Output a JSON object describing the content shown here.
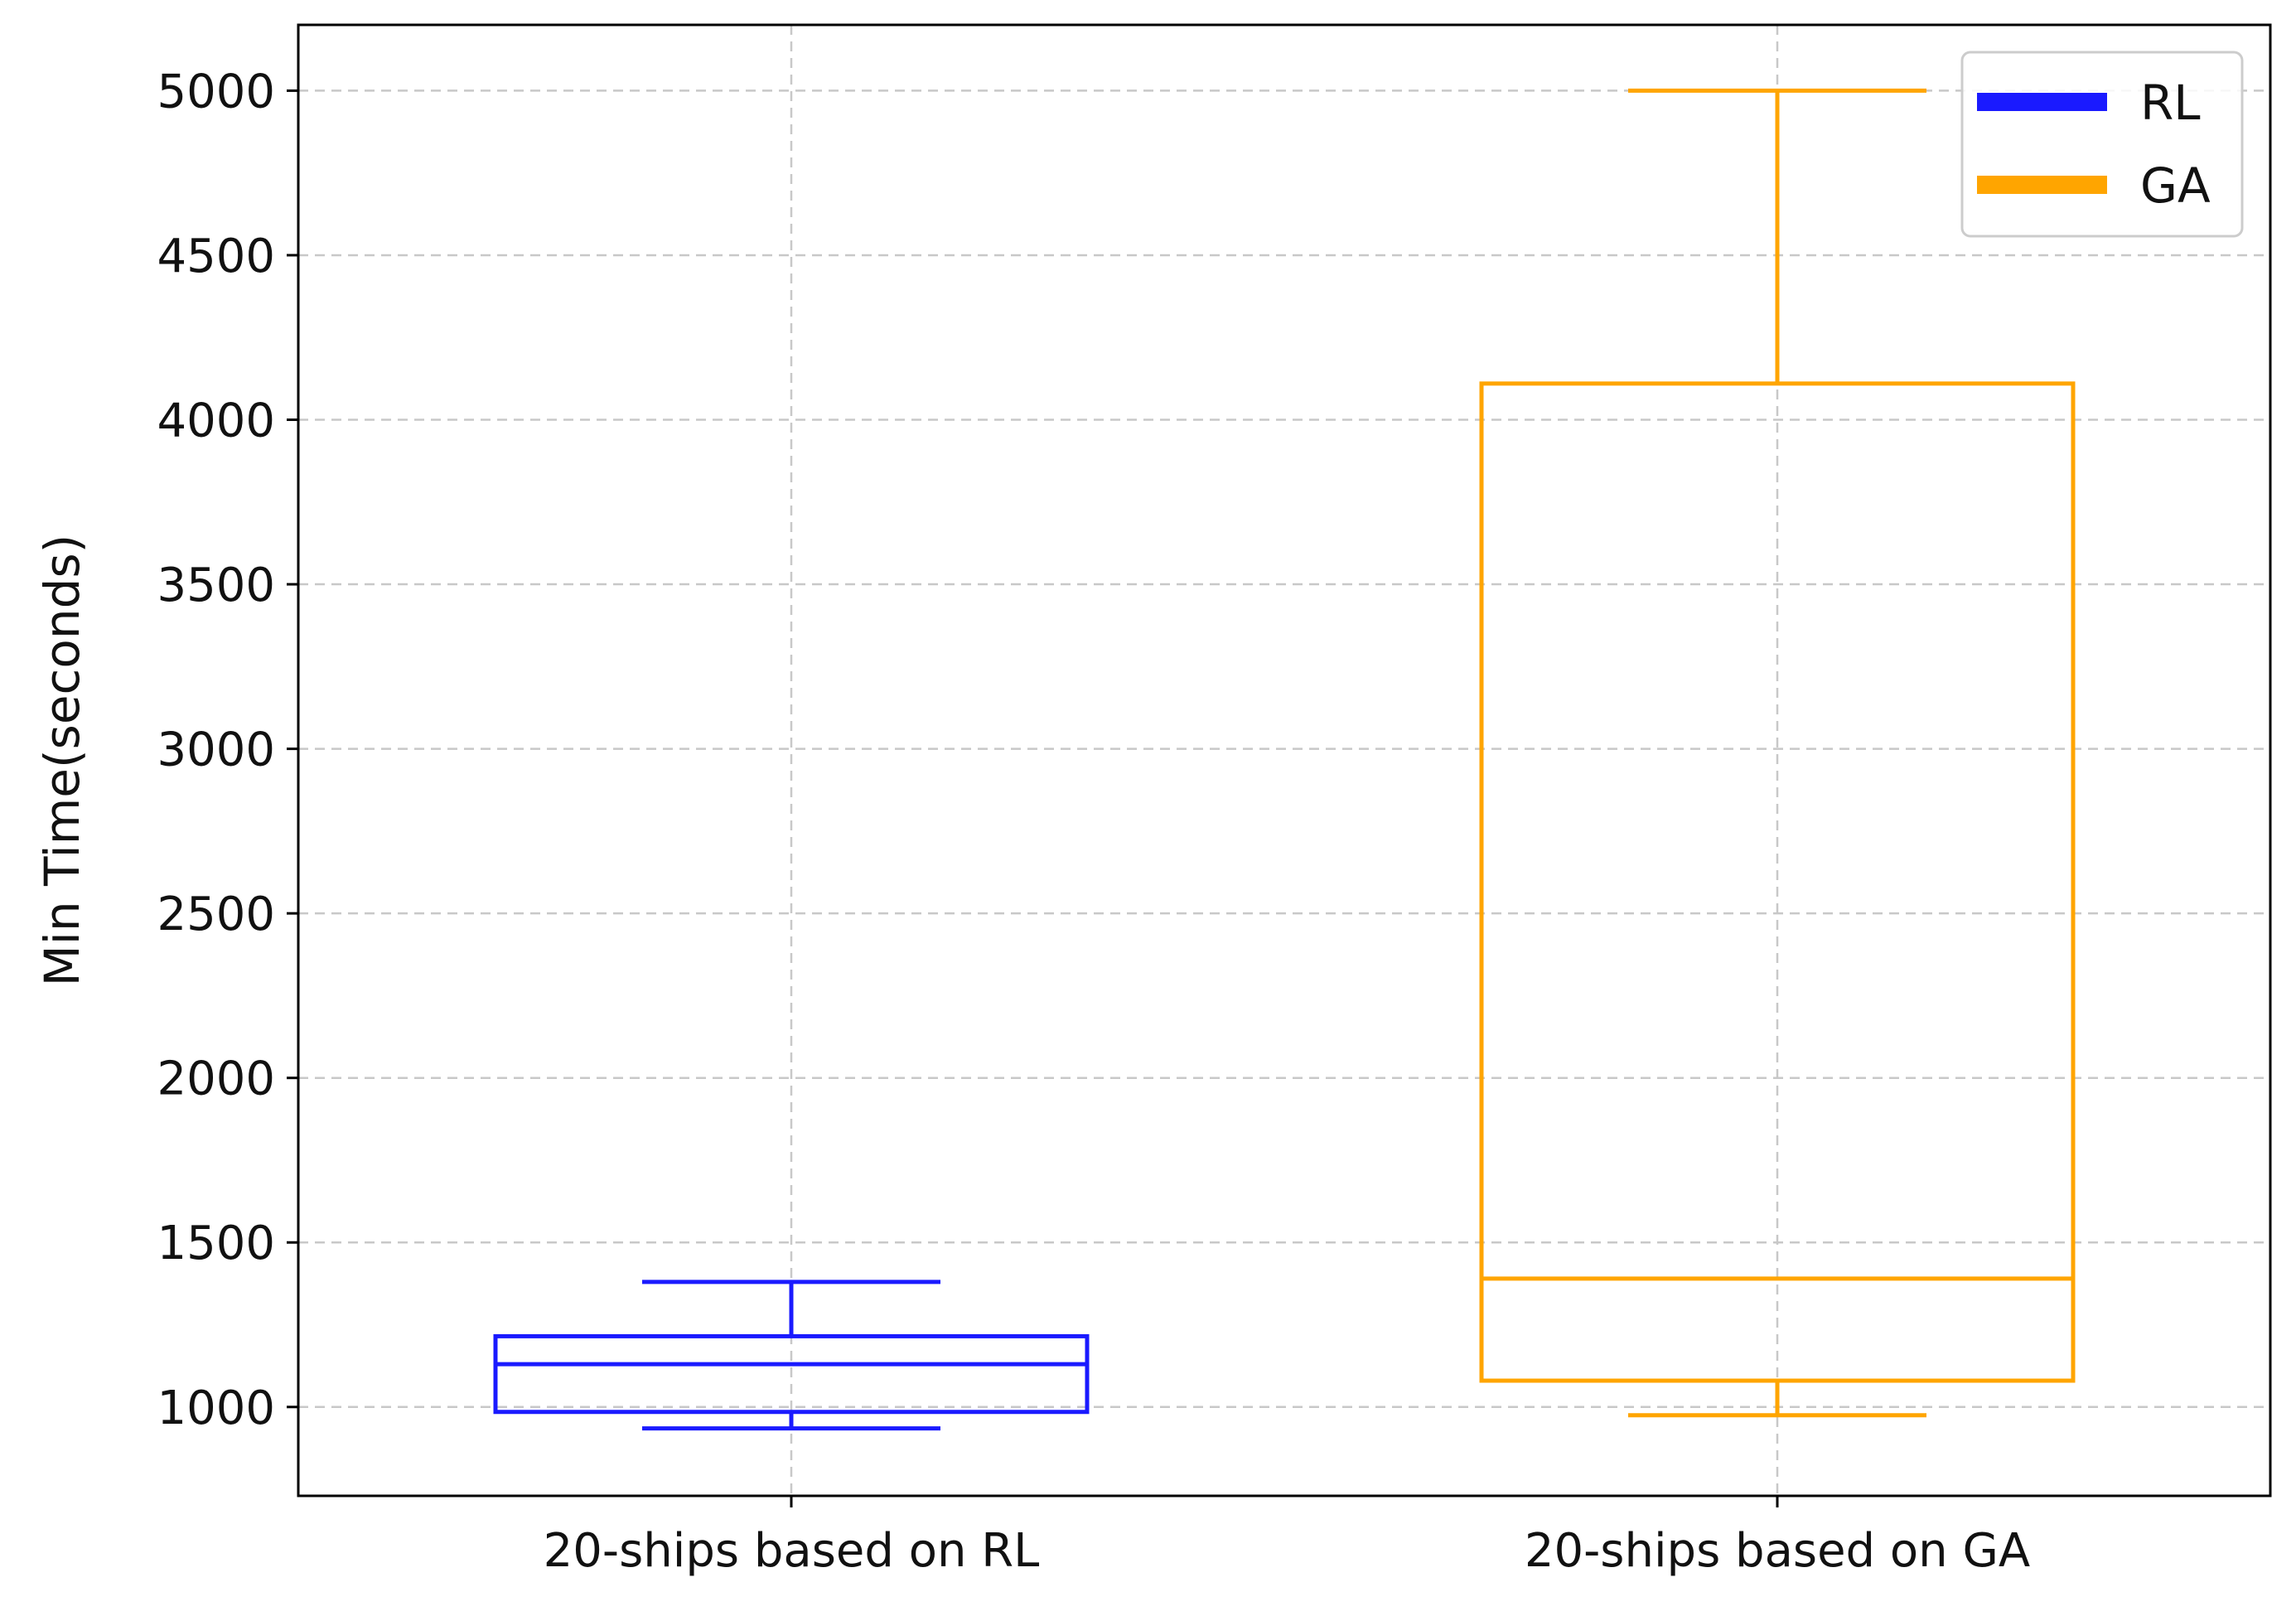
{
  "chart_data": {
    "type": "box",
    "title": "",
    "xlabel": "",
    "ylabel": "Min Time(seconds)",
    "ylim": [
      730,
      5200
    ],
    "yticks": [
      1000,
      1500,
      2000,
      2500,
      3000,
      3500,
      4000,
      4500,
      5000
    ],
    "grid": true,
    "legend_position": "top-right",
    "categories": [
      "20-ships based on RL",
      "20-ships based on GA"
    ],
    "series": [
      {
        "name": "RL",
        "color": "#1a1aff",
        "whisker_low": 935,
        "q1": 985,
        "median": 1130,
        "q3": 1215,
        "whisker_high": 1380
      },
      {
        "name": "GA",
        "color": "#ffa500",
        "whisker_low": 975,
        "q1": 1080,
        "median": 1390,
        "q3": 4110,
        "whisker_high": 5000
      }
    ]
  }
}
